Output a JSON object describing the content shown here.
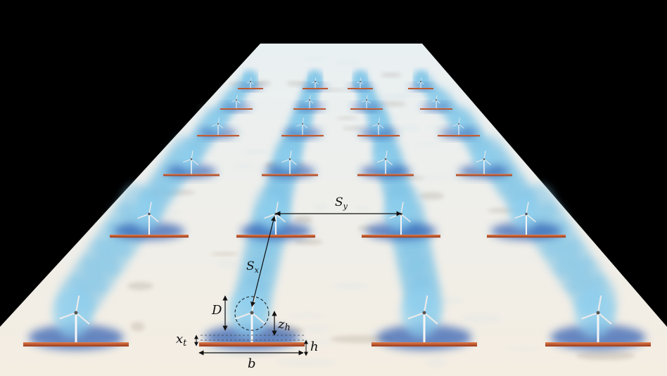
{
  "labels": {
    "Sy": "S",
    "Sy_sub": "y",
    "Sx": "S",
    "Sx_sub": "x",
    "D": "D",
    "zh": "z",
    "zh_sub": "h",
    "xt": "x",
    "xt_sub": "t",
    "h": "h",
    "b": "b"
  },
  "colors": {
    "background": "#000000",
    "floor": "#f2ede3",
    "plume": "#7fc4e6",
    "plume_deep": "#2a5ab0",
    "base_plate": "#c4562e",
    "annotation": "#111111"
  },
  "layout": {
    "rows": 5,
    "cols": 4
  }
}
